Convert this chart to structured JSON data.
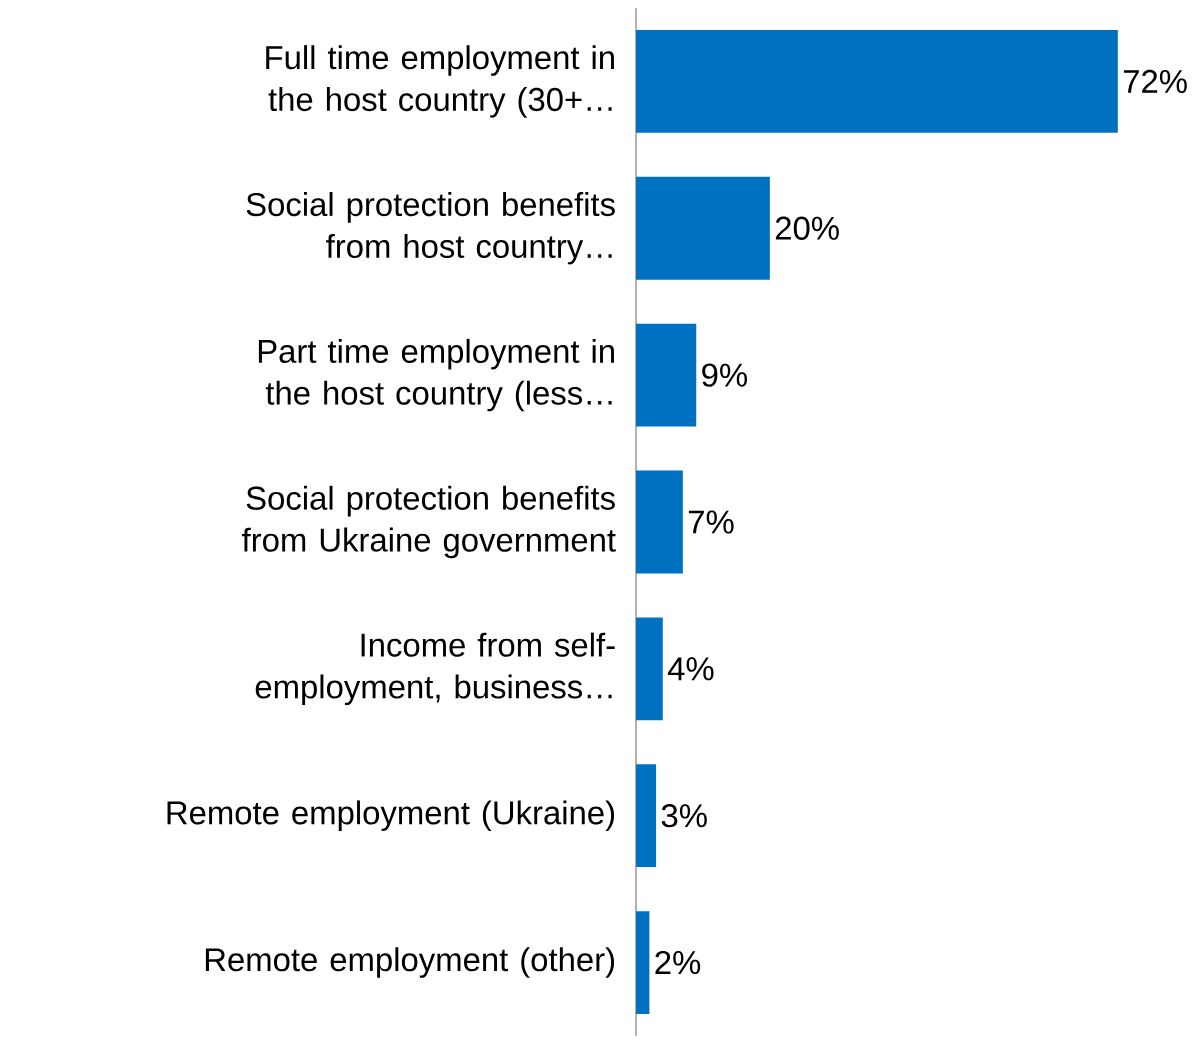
{
  "chart_data": {
    "type": "bar",
    "orientation": "horizontal",
    "color": "#0070c0",
    "categories": [
      "Full time employment in the host country (30+…",
      "Social protection benefits from host country…",
      "Part time employment in the host country (less…",
      "Social protection benefits from Ukraine government",
      "Income from self-employment, business…",
      "Remote employment (Ukraine)",
      "Remote employment (other)"
    ],
    "values": [
      72,
      20,
      9,
      7,
      4,
      3,
      2
    ],
    "value_labels": [
      "72%",
      "20%",
      "9%",
      "7%",
      "4%",
      "3%",
      "2%"
    ]
  }
}
